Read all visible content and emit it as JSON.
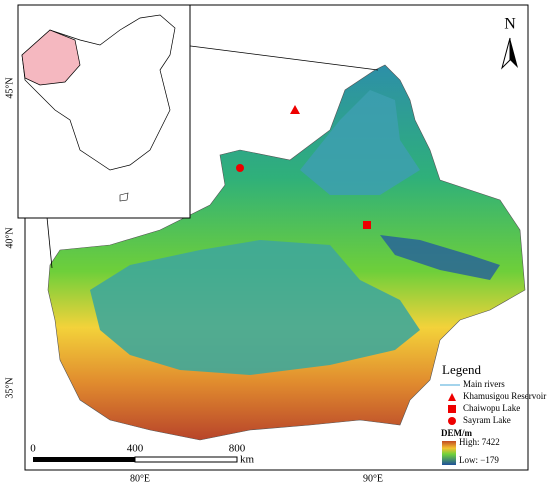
{
  "north": "N",
  "lat_labels": [
    "45°N",
    "40°N",
    "35°N"
  ],
  "lon_labels": [
    "80°E",
    "90°E"
  ],
  "legend": {
    "title": "Legend",
    "items": [
      "Main rivers",
      "Khamusigou Reservoir",
      "Chaiwopu Lake",
      "Sayram Lake"
    ],
    "dem_title": "DEM/m",
    "high": "High: 7422",
    "low": "Low: −179"
  },
  "scale_bar": {
    "labels": [
      "0",
      "400",
      "800"
    ],
    "unit": "km"
  }
}
